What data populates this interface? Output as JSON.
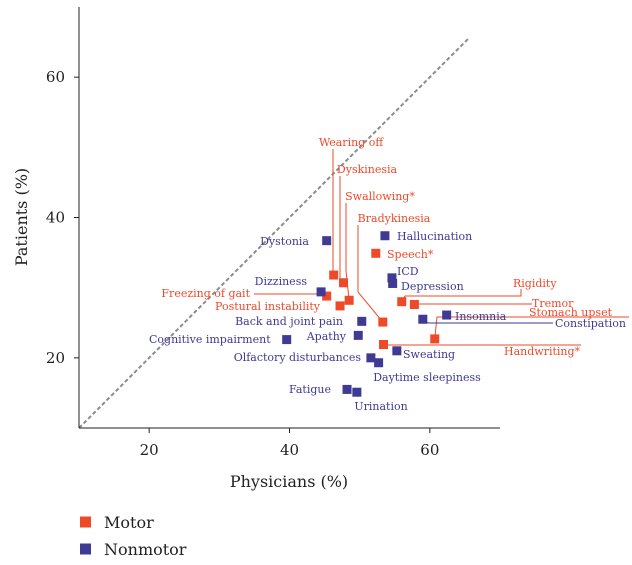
{
  "chart_data": {
    "type": "scatter",
    "xlabel": "Physicians (%)",
    "ylabel": "Patients (%)",
    "xlim": [
      10,
      70
    ],
    "ylim": [
      10,
      70
    ],
    "xticks": [
      20,
      40,
      60
    ],
    "yticks": [
      20,
      40,
      60
    ],
    "xtick_labels": [
      "20",
      "40",
      "60"
    ],
    "ytick_labels": [
      "20",
      "40",
      "60"
    ],
    "grid": false,
    "reference_line": "y = x",
    "legend": {
      "position": "bottom-left",
      "entries": [
        {
          "name": "Motor",
          "color": "#ee4a2a"
        },
        {
          "name": "Nonmotor",
          "color": "#3f3a93"
        }
      ]
    },
    "series": [
      {
        "name": "Motor",
        "color": "#ee4a2a",
        "points": [
          {
            "label": "Wearing off",
            "x": 46.3,
            "y": 31.8
          },
          {
            "label": "Dyskinesia",
            "x": 47.7,
            "y": 30.7
          },
          {
            "label": "Swallowing*",
            "x": 48.5,
            "y": 28.2
          },
          {
            "label": "Bradykinesia",
            "x": 53.3,
            "y": 25.1
          },
          {
            "label": "Speech*",
            "x": 52.3,
            "y": 34.9
          },
          {
            "label": "Freezing of gait",
            "x": 45.3,
            "y": 28.8
          },
          {
            "label": "Postural instability",
            "x": 47.2,
            "y": 27.4
          },
          {
            "label": "Rigidity",
            "x": 56.0,
            "y": 28.0
          },
          {
            "label": "Tremor",
            "x": 57.8,
            "y": 27.6
          },
          {
            "label": "Stomach upset",
            "x": 60.7,
            "y": 22.7
          },
          {
            "label": "Handwriting*",
            "x": 53.4,
            "y": 21.9
          }
        ]
      },
      {
        "name": "Nonmotor",
        "color": "#3f3a93",
        "points": [
          {
            "label": "Dystonia",
            "x": 45.3,
            "y": 36.7
          },
          {
            "label": "Hallucination",
            "x": 53.6,
            "y": 37.4
          },
          {
            "label": "Dizziness",
            "x": 44.5,
            "y": 29.4
          },
          {
            "label": "ICD",
            "x": 54.6,
            "y": 31.4
          },
          {
            "label": "Depression",
            "x": 54.7,
            "y": 30.6
          },
          {
            "label": "Insomnia",
            "x": 62.4,
            "y": 26.1
          },
          {
            "label": "Constipation",
            "x": 59.0,
            "y": 25.5
          },
          {
            "label": "Back and joint pain",
            "x": 50.3,
            "y": 25.2
          },
          {
            "label": "Apathy",
            "x": 49.8,
            "y": 23.2
          },
          {
            "label": "Cognitive impairment",
            "x": 39.6,
            "y": 22.6
          },
          {
            "label": "Olfactory disturbances",
            "x": 51.6,
            "y": 20.0
          },
          {
            "label": "Sweating",
            "x": 55.3,
            "y": 21.0
          },
          {
            "label": "Daytime sleepiness",
            "x": 52.7,
            "y": 19.3
          },
          {
            "label": "Fatigue",
            "x": 48.2,
            "y": 15.5
          },
          {
            "label": "Urination",
            "x": 49.6,
            "y": 15.1
          }
        ]
      }
    ]
  }
}
